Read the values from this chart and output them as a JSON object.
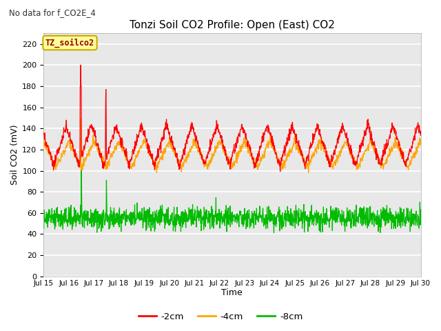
{
  "title": "Tonzi Soil CO2 Profile: Open (East) CO2",
  "no_data_text": "No data for f_CO2E_4",
  "ylabel": "Soil CO2 (mV)",
  "xlabel": "Time",
  "legend_label": "TZ_soilco2",
  "series_labels": [
    "-2cm",
    "-4cm",
    "-8cm"
  ],
  "series_colors": [
    "#ff0000",
    "#ffa500",
    "#00bb00"
  ],
  "ylim": [
    0,
    230
  ],
  "yticks": [
    0,
    20,
    40,
    60,
    80,
    100,
    120,
    140,
    160,
    180,
    200,
    220
  ],
  "xtick_labels": [
    "Jul 15",
    "Jul 16",
    "Jul 17",
    "Jul 18",
    "Jul 19",
    "Jul 20",
    "Jul 21",
    "Jul 22",
    "Jul 23",
    "Jul 24",
    "Jul 25",
    "Jul 26",
    "Jul 27",
    "Jul 28",
    "Jul 29",
    "Jul 30"
  ],
  "fig_bg_color": "#ffffff",
  "plot_bg_color": "#e8e8e8",
  "grid_color": "#ffffff",
  "legend_box_color": "#ffff99",
  "legend_box_edge": "#ccaa00",
  "line_width": 0.9
}
